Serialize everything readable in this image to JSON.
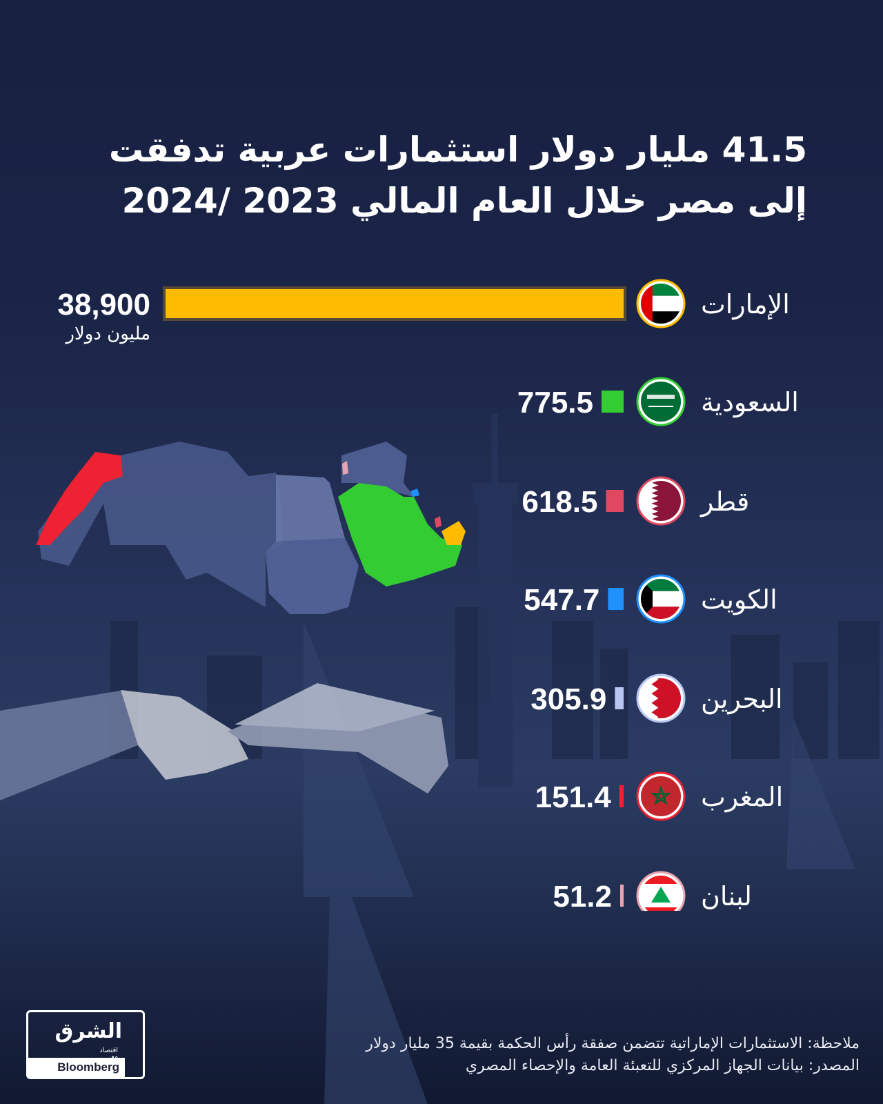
{
  "title": {
    "line1": "41.5  مليار دولار استثمارات عربية تدفقت",
    "line2": "إلى مصر خلال العام المالي 2023 /2024"
  },
  "unit_label": "مليون دولار",
  "colors": {
    "background": "#1b2548",
    "uae": "#ffbb00",
    "saudi": "#33cc33",
    "qatar": "#e04860",
    "kuwait": "#1e90ff",
    "bahrain": "#b9c6f2",
    "morocco": "#ee2233",
    "lebanon": "#e8a4ae"
  },
  "chart_data": {
    "type": "bar",
    "orientation": "horizontal",
    "categories": [
      "الإمارات",
      "السعودية",
      "قطر",
      "الكويت",
      "البحرين",
      "المغرب",
      "لبنان"
    ],
    "values": [
      38900,
      775.5,
      618.5,
      547.7,
      305.9,
      151.4,
      51.2
    ],
    "value_labels": [
      "38,900",
      "775.5",
      "618.5",
      "547.7",
      "305.9",
      "151.4",
      "51.2"
    ],
    "unit": "مليون دولار",
    "flag_icons": [
      "uae-flag-icon",
      "saudi-flag-icon",
      "qatar-flag-icon",
      "kuwait-flag-icon",
      "bahrain-flag-icon",
      "morocco-flag-icon",
      "lebanon-flag-icon"
    ],
    "bar_colors": [
      "#ffbb00",
      "#33cc33",
      "#e04860",
      "#1e90ff",
      "#b9c6f2",
      "#ee2233",
      "#e8a4ae"
    ]
  },
  "footer": {
    "note": "ملاحظة: الاستثمارات الإماراتية تتضمن صفقة رأس الحكمة بقيمة 35 مليار دولار",
    "source": "المصدر: بيانات الجهاز المركزي للتعبئة العامة والإحصاء المصري"
  },
  "logo": {
    "brand": "الشرق",
    "sub": "اقتصاد",
    "with": "مع",
    "partner": "Bloomberg"
  }
}
